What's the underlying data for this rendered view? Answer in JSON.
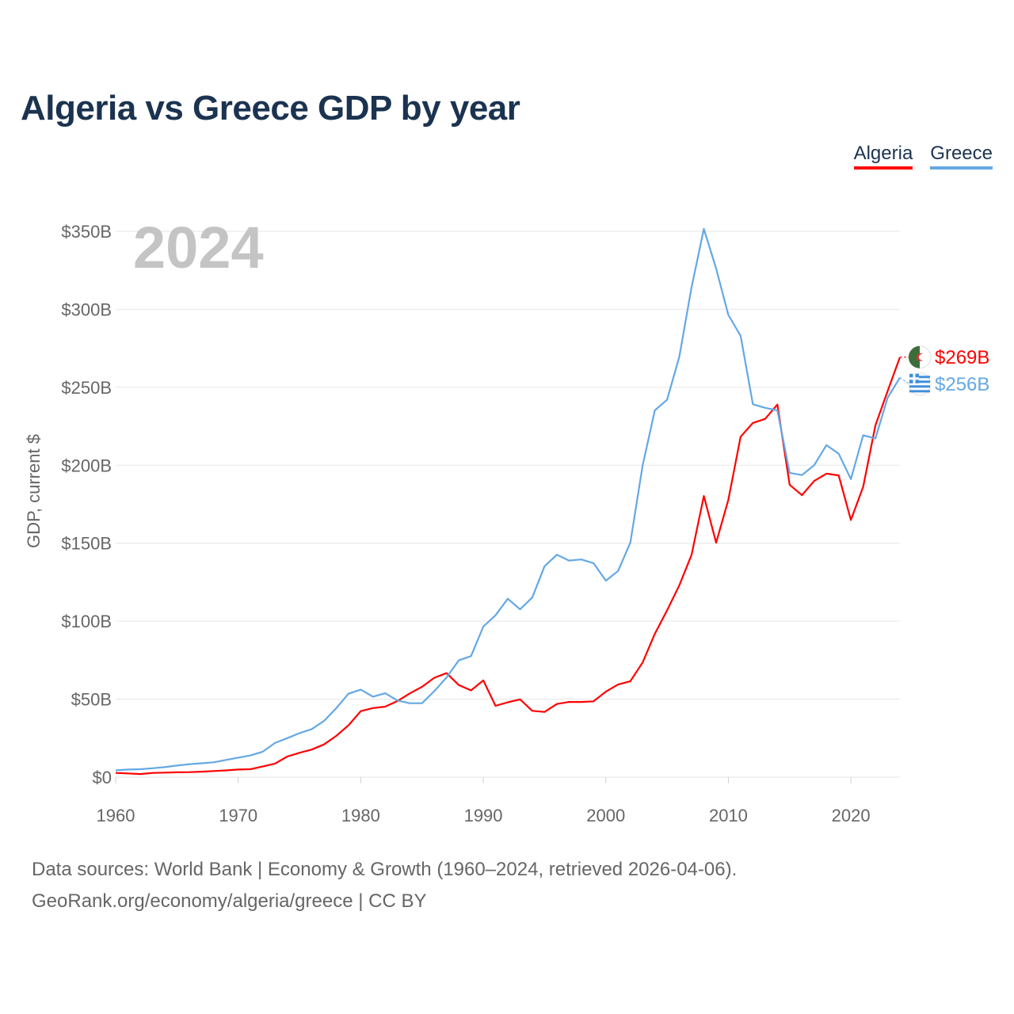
{
  "title": "Algeria vs Greece GDP by year",
  "legend": [
    {
      "name": "Algeria",
      "color": "#ff0000"
    },
    {
      "name": "Greece",
      "color": "#64a8e4"
    }
  ],
  "footer": {
    "sources": "Data sources: World Bank | Economy & Growth (1960–2024, retrieved 2026-04-06).",
    "credit": "GeoRank.org/economy/algeria/greece | CC BY"
  },
  "chart_data": {
    "type": "line",
    "title": "Algeria vs Greece GDP by year",
    "year_label": "2024",
    "ylabel": "GDP, current $",
    "xlabel": "",
    "xlim": [
      1960,
      2024
    ],
    "ylim": [
      0,
      350
    ],
    "y_unit": "billion USD",
    "y_ticks": [
      0,
      50,
      100,
      150,
      200,
      250,
      300,
      350
    ],
    "y_tick_labels": [
      "$0",
      "$50B",
      "$100B",
      "$150B",
      "$200B",
      "$250B",
      "$300B",
      "$350B"
    ],
    "x_ticks": [
      1960,
      1970,
      1980,
      1990,
      2000,
      2010,
      2020
    ],
    "x_tick_labels": [
      "1960",
      "1970",
      "1980",
      "1990",
      "2000",
      "2010",
      "2020"
    ],
    "grid": true,
    "x": [
      1960,
      1961,
      1962,
      1963,
      1964,
      1965,
      1966,
      1967,
      1968,
      1969,
      1970,
      1971,
      1972,
      1973,
      1974,
      1975,
      1976,
      1977,
      1978,
      1979,
      1980,
      1981,
      1982,
      1983,
      1984,
      1985,
      1986,
      1987,
      1988,
      1989,
      1990,
      1991,
      1992,
      1993,
      1994,
      1995,
      1996,
      1997,
      1998,
      1999,
      2000,
      2001,
      2002,
      2003,
      2004,
      2005,
      2006,
      2007,
      2008,
      2009,
      2010,
      2011,
      2012,
      2013,
      2014,
      2015,
      2016,
      2017,
      2018,
      2019,
      2020,
      2021,
      2022,
      2023,
      2024
    ],
    "series": [
      {
        "name": "Algeria",
        "color": "#ff0000",
        "end_label": "$269B",
        "values": [
          2.7,
          2.4,
          2.0,
          2.7,
          2.9,
          3.1,
          3.2,
          3.5,
          3.9,
          4.3,
          4.9,
          5.1,
          6.8,
          8.7,
          13.2,
          15.6,
          17.7,
          21.0,
          26.4,
          33.2,
          42.3,
          44.3,
          45.2,
          48.8,
          53.7,
          57.9,
          63.7,
          66.7,
          59.1,
          55.6,
          62.0,
          45.7,
          48.0,
          49.9,
          42.5,
          41.8,
          46.9,
          48.2,
          48.2,
          48.6,
          54.8,
          59.4,
          61.5,
          73.5,
          91.9,
          107.0,
          123.1,
          142.6,
          180.3,
          150.3,
          177.8,
          218.3,
          227.1,
          229.7,
          238.9,
          187.5,
          180.8,
          189.9,
          194.6,
          193.5,
          164.9,
          186.2,
          225.6,
          247.6,
          269.3
        ]
      },
      {
        "name": "Greece",
        "color": "#64a8e4",
        "end_label": "$256B",
        "values": [
          4.3,
          4.9,
          5.1,
          5.7,
          6.4,
          7.4,
          8.3,
          8.9,
          9.5,
          11.0,
          12.5,
          13.9,
          16.3,
          21.9,
          25.0,
          28.2,
          30.8,
          36.0,
          44.2,
          53.5,
          56.1,
          51.6,
          53.8,
          49.1,
          47.4,
          47.4,
          55.1,
          63.9,
          74.9,
          77.6,
          96.5,
          103.8,
          114.4,
          107.6,
          115.2,
          135.2,
          142.6,
          138.9,
          139.6,
          137.2,
          126.0,
          132.2,
          150.4,
          199.8,
          235.2,
          242.0,
          269.8,
          314.2,
          351.6,
          326.1,
          296.4,
          283.0,
          239.1,
          236.8,
          235.2,
          195.1,
          193.7,
          200.0,
          212.9,
          207.4,
          191.1,
          219.2,
          217.2,
          243.3,
          256.2
        ]
      }
    ]
  }
}
